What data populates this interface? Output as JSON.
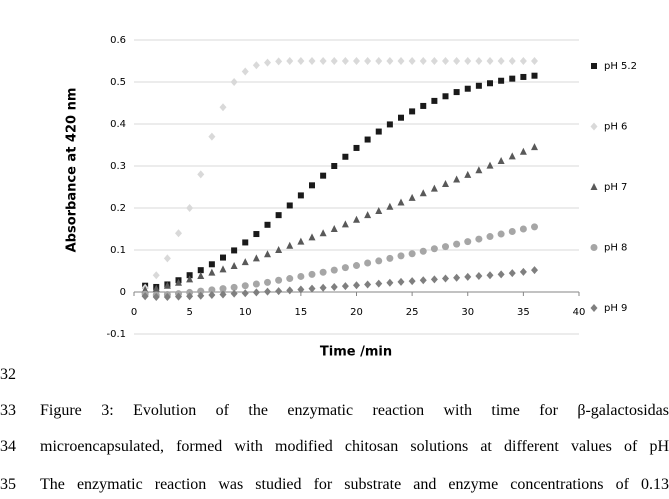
{
  "chart_data": {
    "type": "scatter",
    "x_label": "Time /min",
    "y_label": "Absorbance at  420 nm",
    "x": [
      1,
      2,
      3,
      4,
      5,
      6,
      7,
      8,
      9,
      10,
      11,
      12,
      13,
      14,
      15,
      16,
      17,
      18,
      19,
      20,
      21,
      22,
      23,
      24,
      25,
      26,
      27,
      28,
      29,
      30,
      31,
      32,
      33,
      34,
      35,
      36
    ],
    "series": [
      {
        "name": "pH 5.2",
        "color": "#1a1a1a",
        "marker": "square",
        "values": [
          0.015,
          0.012,
          0.018,
          0.028,
          0.04,
          0.052,
          0.066,
          0.082,
          0.099,
          0.118,
          0.138,
          0.16,
          0.183,
          0.206,
          0.23,
          0.254,
          0.277,
          0.3,
          0.322,
          0.343,
          0.363,
          0.382,
          0.399,
          0.415,
          0.43,
          0.443,
          0.455,
          0.466,
          0.476,
          0.484,
          0.491,
          0.497,
          0.503,
          0.508,
          0.512,
          0.515
        ]
      },
      {
        "name": "pH 6",
        "color": "#d9d9d9",
        "marker": "diamond",
        "values": [
          0.01,
          0.04,
          0.08,
          0.14,
          0.2,
          0.28,
          0.37,
          0.44,
          0.5,
          0.525,
          0.54,
          0.546,
          0.549,
          0.55,
          0.55,
          0.55,
          0.55,
          0.55,
          0.55,
          0.55,
          0.55,
          0.55,
          0.55,
          0.55,
          0.55,
          0.55,
          0.55,
          0.55,
          0.55,
          0.55,
          0.55,
          0.55,
          0.55,
          0.55,
          0.55,
          0.55
        ]
      },
      {
        "name": "pH 7",
        "color": "#595959",
        "marker": "triangle",
        "values": [
          0.005,
          0.008,
          0.015,
          0.022,
          0.03,
          0.038,
          0.046,
          0.054,
          0.062,
          0.071,
          0.08,
          0.09,
          0.1,
          0.11,
          0.12,
          0.13,
          0.14,
          0.15,
          0.161,
          0.172,
          0.183,
          0.193,
          0.203,
          0.213,
          0.224,
          0.235,
          0.246,
          0.257,
          0.268,
          0.279,
          0.29,
          0.301,
          0.312,
          0.323,
          0.334,
          0.345
        ]
      },
      {
        "name": "pH 8",
        "color": "#a6a6a6",
        "marker": "circle",
        "values": [
          -0.005,
          -0.007,
          -0.006,
          -0.004,
          -0.001,
          0.002,
          0.005,
          0.008,
          0.011,
          0.015,
          0.019,
          0.023,
          0.028,
          0.032,
          0.037,
          0.042,
          0.047,
          0.052,
          0.058,
          0.063,
          0.069,
          0.074,
          0.08,
          0.086,
          0.091,
          0.097,
          0.103,
          0.108,
          0.114,
          0.12,
          0.126,
          0.132,
          0.138,
          0.144,
          0.15,
          0.155
        ]
      },
      {
        "name": "pH 9",
        "color": "#7f7f7f",
        "marker": "diamond",
        "values": [
          -0.01,
          -0.012,
          -0.012,
          -0.011,
          -0.01,
          -0.009,
          -0.007,
          -0.006,
          -0.004,
          -0.003,
          -0.001,
          0.001,
          0.002,
          0.004,
          0.006,
          0.008,
          0.01,
          0.012,
          0.014,
          0.016,
          0.018,
          0.02,
          0.022,
          0.024,
          0.026,
          0.028,
          0.03,
          0.032,
          0.034,
          0.036,
          0.038,
          0.04,
          0.042,
          0.045,
          0.048,
          0.052
        ]
      }
    ],
    "xlim": [
      0,
      40
    ],
    "xticks": [
      0,
      5,
      10,
      15,
      20,
      25,
      30,
      35,
      40
    ],
    "ylim": [
      -0.1,
      0.6
    ],
    "yticks": [
      -0.1,
      0,
      0.1,
      0.2,
      0.3,
      0.4,
      0.5,
      0.6
    ],
    "grid": true,
    "legend": "right"
  },
  "document": {
    "line_numbers": [
      "32",
      "33",
      "34",
      "35"
    ],
    "caption_lines": [
      "Figure 3: Evolution of the enzymatic reaction with time for β-galactosidas",
      "microencapsulated, formed with modified chitosan solutions at different values of pH",
      "The enzymatic reaction was studied for substrate and enzyme concentrations of 0.13"
    ]
  }
}
